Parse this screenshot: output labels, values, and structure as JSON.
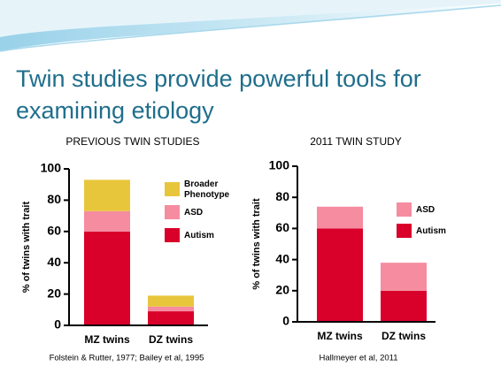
{
  "slide_title": [
    "Twin studies provide powerful tools for",
    "examining etiology"
  ],
  "chart_data": [
    {
      "type": "bar",
      "stacked": true,
      "title": "PREVIOUS TWIN STUDIES",
      "ylabel": "% of twins with trait",
      "categories": [
        "MZ twins",
        "DZ twins"
      ],
      "series": [
        {
          "name": "Autism",
          "color": "#d9002a",
          "values": [
            60,
            9
          ]
        },
        {
          "name": "ASD",
          "color": "#f58ca0",
          "values": [
            13,
            3
          ]
        },
        {
          "name": "Broader Phenotype",
          "color": "#e8c63c",
          "values": [
            20,
            7
          ]
        }
      ],
      "ylim": [
        0,
        100
      ],
      "yticks": [
        0,
        20,
        40,
        60,
        80,
        100
      ],
      "source": "Folstein & Rutter, 1977; Bailey et al, 1995"
    },
    {
      "type": "bar",
      "stacked": true,
      "title": "2011 TWIN STUDY",
      "ylabel": "% of twins with trait",
      "categories": [
        "MZ twins",
        "DZ twins"
      ],
      "series": [
        {
          "name": "Autism",
          "color": "#d9002a",
          "values": [
            60,
            20
          ]
        },
        {
          "name": "ASD",
          "color": "#f58ca0",
          "values": [
            14,
            18
          ]
        }
      ],
      "ylim": [
        0,
        100
      ],
      "yticks": [
        0,
        20,
        40,
        60,
        80,
        100
      ],
      "source": "Hallmeyer et al, 2011"
    }
  ]
}
